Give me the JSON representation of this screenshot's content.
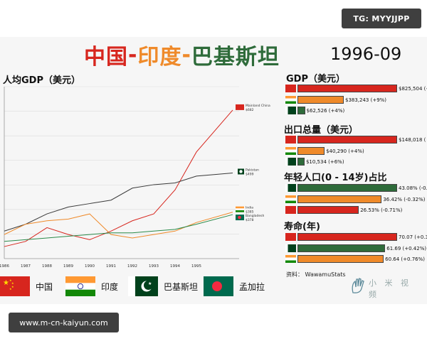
{
  "watermark_top": "TG: MYYJJPP",
  "watermark_bottom": "www.m-cn-kaiyun.com",
  "title": {
    "part1": "中国",
    "sep1": "-",
    "part2": "印度",
    "sep2": "-",
    "part3": "巴基斯坦",
    "color1": "#d7261e",
    "color2": "#ef8a2a",
    "color3": "#2e6b3a"
  },
  "date": "1996-09",
  "legend": [
    {
      "label": "中国",
      "flag": "china"
    },
    {
      "label": "印度",
      "flag": "india"
    },
    {
      "label": "巴基斯坦",
      "flag": "pakistan"
    },
    {
      "label": "孟加拉",
      "flag": "bangladesh"
    }
  ],
  "source": "资料： WawamuStats",
  "logo_text": "小 米 视 频",
  "colors": {
    "china": "#d7261e",
    "india": "#ef8a2a",
    "pakistan": "#2e6b3a",
    "bangladesh": "#2b8a4a",
    "pakistan_line": "#3a3a3a"
  },
  "chart_data": [
    {
      "type": "line",
      "title": "人均GDP（美元）",
      "x": [
        1986,
        1987,
        1988,
        1989,
        1990,
        1991,
        1992,
        1993,
        1994,
        1995,
        1996.7
      ],
      "tick_labels": [
        "1986",
        "1987",
        "1988",
        "1989",
        "1990",
        "1991",
        "1992",
        "1993",
        "1994",
        "1995"
      ],
      "xlim": [
        1986,
        1997
      ],
      "ylim": [
        250,
        750
      ],
      "series": [
        {
          "name": "Mainland China",
          "key": "china",
          "values": [
            285,
            300,
            340,
            320,
            305,
            330,
            360,
            380,
            450,
            560,
            682
          ],
          "end_label": "Mainland China",
          "end_value": "$682"
        },
        {
          "name": "Pakistan",
          "key": "pakistan_line",
          "values": [
            330,
            350,
            380,
            400,
            410,
            420,
            455,
            465,
            470,
            490,
            499
          ],
          "end_label": "Pakistan",
          "end_value": "$499"
        },
        {
          "name": "India",
          "key": "india",
          "values": [
            320,
            350,
            360,
            365,
            380,
            320,
            310,
            320,
            330,
            355,
            385
          ],
          "end_label": "India",
          "end_value": "$385"
        },
        {
          "name": "Bangladesh",
          "key": "bangladesh",
          "values": [
            300,
            305,
            310,
            315,
            320,
            325,
            325,
            330,
            335,
            350,
            378
          ],
          "end_label": "Bangladesh",
          "end_value": "$378"
        }
      ]
    },
    {
      "type": "bar",
      "title": "GDP（美元）",
      "max": 825504,
      "bars": [
        {
          "flag": "china",
          "value": 825504,
          "label": "$825,504 (+"
        },
        {
          "flag": "india",
          "value": 383243,
          "label": "$383,243 (+9%)"
        },
        {
          "flag": "pakistan",
          "value": 62526,
          "label": "$62,526 (+4%)"
        }
      ]
    },
    {
      "type": "bar",
      "title": "出口总量（美元）",
      "max": 148018,
      "bars": [
        {
          "flag": "china",
          "value": 148018,
          "label": "$148,018 ("
        },
        {
          "flag": "india",
          "value": 40290,
          "label": "$40,290 (+4%)"
        },
        {
          "flag": "pakistan",
          "value": 10534,
          "label": "$10,534 (+6%)"
        }
      ]
    },
    {
      "type": "bar",
      "title": "年轻人口(0 - 14岁)占比",
      "max": 43.08,
      "bars": [
        {
          "flag": "pakistan",
          "value": 43.08,
          "label": "43.08% (-0.2"
        },
        {
          "flag": "india",
          "value": 36.42,
          "label": "36.42% (-0.32%)"
        },
        {
          "flag": "china",
          "value": 26.53,
          "label": "26.53% (-0.71%)"
        }
      ]
    },
    {
      "type": "bar",
      "title": "寿命(年)",
      "max": 70.07,
      "bars": [
        {
          "flag": "china",
          "value": 70.07,
          "label": "70.07 (+0.3"
        },
        {
          "flag": "pakistan",
          "value": 61.69,
          "label": "61.69 (+0.42%)"
        },
        {
          "flag": "india",
          "value": 60.64,
          "label": "60.64 (+0.76%)"
        }
      ]
    }
  ]
}
